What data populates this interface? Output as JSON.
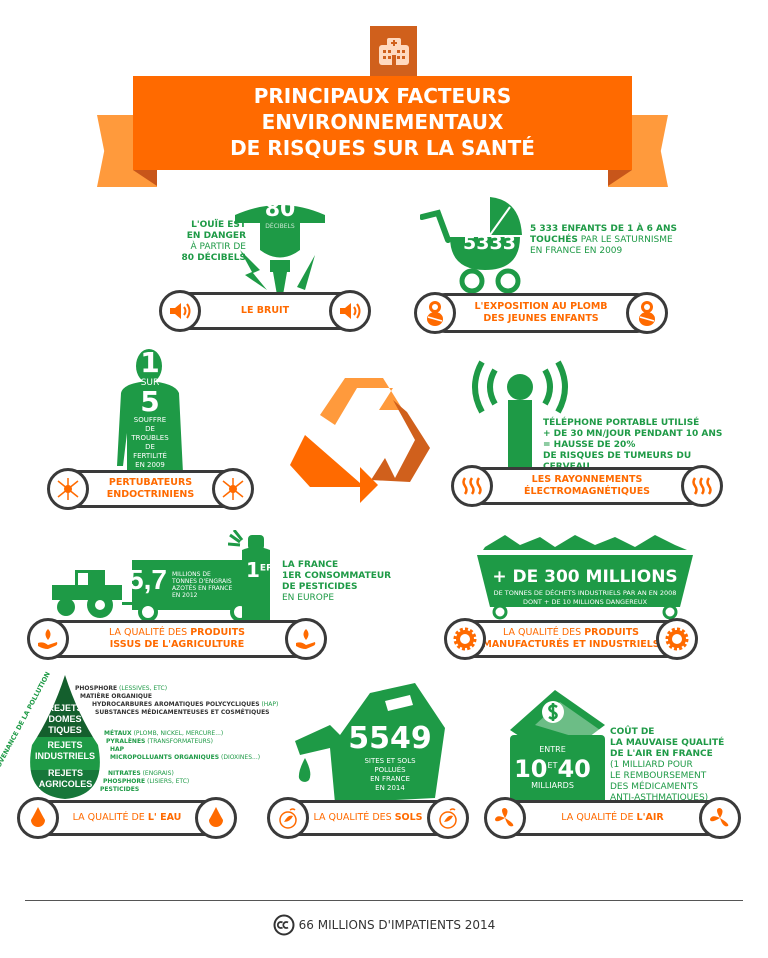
{
  "header": {
    "title_lines": [
      "PRINCIPAUX FACTEURS",
      "ENVIRONNEMENTAUX",
      "DE RISQUES SUR LA SANTÉ"
    ],
    "icon": "hospital-icon"
  },
  "colors": {
    "green": "#1e9a46",
    "orange": "#ff6a00",
    "light_orange": "#ff9a3c",
    "dark_orange": "#d0601c",
    "dark_gray": "#3a3a3a"
  },
  "bruit": {
    "number": "80",
    "unit": "DÉCIBELS",
    "text_bold": [
      "L'OUÏE EST",
      "EN DANGER"
    ],
    "text_light": "À PARTIR DE",
    "text_bold2": "80 DÉCIBELS",
    "label": "LE BRUIT",
    "icon": "speaker-icon"
  },
  "plomb": {
    "number": "5333",
    "text_bold": "5 333 ENFANTS DE 1 À 6 ANS",
    "text_bold2": "TOUCHÉS",
    "text_light": " PAR LE SATURNISME",
    "text_light2": "EN FRANCE EN 2009",
    "label_lines": [
      "L'EXPOSITION AU PLOMB",
      "DES JEUNES ENFANTS"
    ],
    "icon": "baby-icon"
  },
  "endocriniens": {
    "num1": "1",
    "sur": "SUR",
    "num2": "5",
    "text": [
      "SOUFFRE",
      "DE",
      "TROUBLES",
      "DE",
      "FERTILITÉ",
      "EN 2009"
    ],
    "label_lines": [
      "PERTUBATEURS",
      "ENDOCTRINIENS"
    ],
    "icon": "neuron-icon"
  },
  "rayonnements": {
    "text": [
      "TÉLÉPHONE PORTABLE UTILISÉ",
      "+ DE 30 MN/JOUR PENDANT 10 ANS",
      "= HAUSSE DE 20%",
      "DE RISQUES DE TUMEURS DU CERVEAU"
    ],
    "label_lines": [
      "LES RAYONNEMENTS",
      "ÉLECTROMAGNÉTIQUES"
    ],
    "icon": "heat-waves-icon"
  },
  "agriculture": {
    "number": "5,7",
    "number_text": [
      "MILLIONS DE",
      "TONNES D'ENGRAIS",
      "AZOTÉS EN FRANCE",
      "EN 2012"
    ],
    "rank": "1",
    "rank_sup": "ER",
    "text": [
      "LA FRANCE",
      "1ER CONSOMMATEUR",
      "DE PESTICIDES",
      "EN EUROPE"
    ],
    "label_light": "LA QUALITÉ DES ",
    "label_bold": "PRODUITS",
    "label_line2": "ISSUS DE L'AGRICULTURE",
    "icon": "hand-flame-icon"
  },
  "industriels": {
    "headline": "+ DE 300 MILLIONS",
    "text": [
      "DE TONNES DE DÉCHETS INDUSTRIELS PAR AN EN 2008",
      "DONT + DE 10 MILLIONS DANGEREUX"
    ],
    "label_light": "LA QUALITÉ DES ",
    "label_bold": "PRODUITS",
    "label_line2": "MANUFACTURÉS ET INDUSTRIELS",
    "icon": "gear-icon"
  },
  "eau": {
    "side_label": "PROVENANCE DE LA POLLUTION",
    "sections": [
      {
        "name": "REJETS DOMES TIQUES",
        "items": [
          [
            "PHOSPHORE",
            "(LESSIVES, ETC)"
          ],
          [
            "MATIÈRE ORGANIQUE",
            ""
          ],
          [
            "HYDROCARBURES AROMATIQUES POLYCYCLIQUES",
            "(HAP)"
          ],
          [
            "SUBSTANCES MÉDICAMENTEUSES ET COSMÉTIQUES",
            ""
          ]
        ]
      },
      {
        "name": "REJETS INDUSTRIELS",
        "items": [
          [
            "MÉTAUX",
            "(PLOMB, NICKEL, MERCURE...)"
          ],
          [
            "PYRALÈNES",
            "(TRANSFORMATEURS)"
          ],
          [
            "HAP",
            ""
          ],
          [
            "MICROPOLLUANTS ORGANIQUES",
            "(DIOXINES...)"
          ]
        ]
      },
      {
        "name": "REJETS AGRICOLES",
        "items": [
          [
            "NITRATES",
            "(ENGRAIS)"
          ],
          [
            "PHOSPHORE",
            "(LISIERS, ETC)"
          ],
          [
            "PESTICIDES",
            ""
          ]
        ]
      }
    ],
    "label_light": "LA QUALITÉ DE ",
    "label_bold": "L' EAU",
    "icon": "drop-icon"
  },
  "sols": {
    "number": "5549",
    "text": [
      "SITES ET SOLS",
      "POLLUÉS",
      "EN FRANCE",
      "EN 2014"
    ],
    "label_light": "LA QUALITÉ DES ",
    "label_bold": "SOLS",
    "icon": "sprout-icon"
  },
  "air": {
    "entre": "ENTRE",
    "num1": "10",
    "et": "ET",
    "num2": "40",
    "milliards": "MILLIARDS",
    "text_bold": [
      "COÛT DE",
      "LA MAUVAISE QUALITÉ",
      "DE L'AIR EN FRANCE"
    ],
    "text_light": [
      "(1 MILLIARD POUR",
      "LE REMBOURSEMENT",
      "DES MÉDICAMENTS",
      "ANTI-ASTHMATIQUES)"
    ],
    "label_light": "LA QUALITÉ DE ",
    "label_bold": "L'AIR",
    "icon": "fan-icon"
  },
  "footer": {
    "text": "66 MILLIONS D'IMPATIENTS 2014",
    "icon": "creative-commons-icon"
  }
}
